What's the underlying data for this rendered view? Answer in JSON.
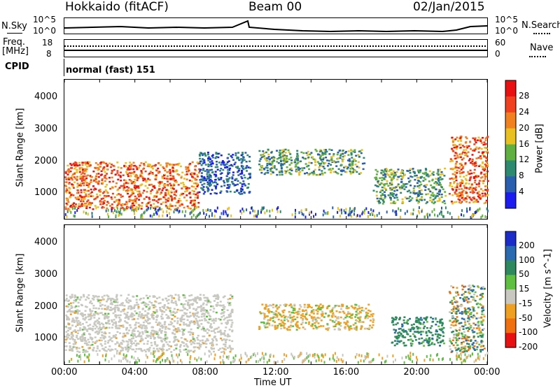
{
  "header": {
    "radar": "Hokkaido (fitACF)",
    "beam": "Beam 00",
    "date": "02/Jan/2015"
  },
  "top_panels": {
    "nsky_label": "N.Sky",
    "nsky_ticks": [
      "10^5",
      "10^0"
    ],
    "nsearch_label": "N.Search",
    "freq_label": "Freq.",
    "freq_unit": "[MHz]",
    "freq_ticks": [
      "18",
      "8"
    ],
    "nave_label": "Nave",
    "nave_ticks": [
      "60",
      "0"
    ],
    "cpid_label": "CPID",
    "cpid_text": "normal (fast) 151"
  },
  "chart_data": [
    {
      "type": "heatmap",
      "panel": "power",
      "ylabel": "Slant Range [km]",
      "xlabel": "",
      "y_ticks": [
        "1000",
        "2000",
        "3000",
        "4000"
      ],
      "ylim": [
        200,
        4550
      ],
      "xlim": [
        0,
        24
      ],
      "colorbar": {
        "label": "Power [dB]",
        "ticks": [
          "4",
          "8",
          "12",
          "16",
          "20",
          "24",
          "28"
        ],
        "colors": [
          "#1c1cf0",
          "#2a5fb0",
          "#2e8a6e",
          "#5fb040",
          "#e8c020",
          "#f08020",
          "#f04020",
          "#e81010"
        ]
      },
      "regions": [
        {
          "t0": 0.0,
          "t1": 7.6,
          "r0": 500,
          "r1": 2000,
          "level": "high"
        },
        {
          "t0": 7.6,
          "t1": 10.5,
          "r0": 1000,
          "r1": 2300,
          "level": "low"
        },
        {
          "t0": 11.0,
          "t1": 17.0,
          "r0": 1600,
          "r1": 2400,
          "level": "mid"
        },
        {
          "t0": 17.5,
          "t1": 21.6,
          "r0": 700,
          "r1": 1800,
          "level": "mid"
        },
        {
          "t0": 21.8,
          "t1": 24.0,
          "r0": 700,
          "r1": 2800,
          "level": "high"
        }
      ]
    },
    {
      "type": "heatmap",
      "panel": "velocity",
      "ylabel": "Slant Range [km]",
      "xlabel": "Time UT",
      "y_ticks": [
        "1000",
        "2000",
        "3000",
        "4000"
      ],
      "ylim": [
        200,
        4550
      ],
      "xlim": [
        0,
        24
      ],
      "x_ticks": [
        "00:00",
        "04:00",
        "08:00",
        "12:00",
        "16:00",
        "20:00",
        "00:00"
      ],
      "colorbar": {
        "label": "Velocity [m s^-1]",
        "ticks": [
          "200",
          "100",
          "50",
          "15",
          "-15",
          "-50",
          "-100",
          "-200"
        ],
        "colors": [
          "#1c2cc8",
          "#2a6ab0",
          "#2e8a5e",
          "#5fbf40",
          "#c8c8c0",
          "#f0a020",
          "#f07010",
          "#e81010"
        ]
      },
      "regions": [
        {
          "t0": 0.0,
          "t1": 9.5,
          "r0": 600,
          "r1": 2400,
          "level": "near-zero"
        },
        {
          "t0": 11.0,
          "t1": 17.5,
          "r0": 1300,
          "r1": 2100,
          "level": "negative"
        },
        {
          "t0": 18.5,
          "t1": 21.5,
          "r0": 800,
          "r1": 1700,
          "level": "positive"
        },
        {
          "t0": 21.8,
          "t1": 23.8,
          "r0": 600,
          "r1": 2700,
          "level": "mixed"
        }
      ]
    }
  ]
}
